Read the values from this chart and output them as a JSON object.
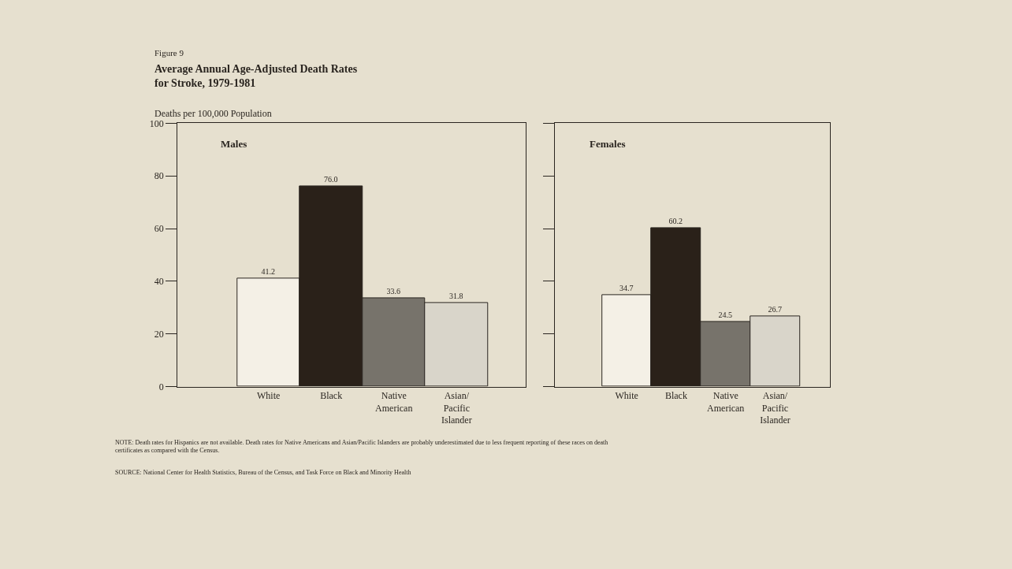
{
  "chart_data": [
    {
      "type": "bar",
      "subtitle": "Figure 9",
      "title": "Average Annual Age-Adjusted Death Rates\nfor Stroke, 1979-1981",
      "ylabel": "Deaths per 100,000 Population",
      "categories": [
        "White",
        "Black",
        "Native\nAmerican",
        "Asian/\nPacific\nIslander"
      ],
      "values": [
        41.2,
        76.0,
        33.6,
        31.8
      ],
      "colors": [
        "#f4f0e6",
        "#2a2119",
        "#77736b",
        "#d9d5ca"
      ],
      "ylim": [
        0,
        100
      ],
      "yticks": [
        0,
        20,
        40,
        60,
        80,
        100
      ],
      "value_labels": [
        "41.2",
        "76.0",
        "33.6",
        "31.8"
      ],
      "grid": false,
      "annotations": [
        "Males",
        "NOTE: Death rates for Hispanics are not available. Death rates for Native Americans and Asian/Pacific Islanders are probably underestimated due to less frequent reporting of these races on death certificates as compared with the Census.",
        "SOURCE: National Center for Health Statistics, Bureau of the Census, and Task Force on Black and Minority Health"
      ]
    },
    {
      "type": "bar",
      "categories": [
        "White",
        "Black",
        "Native\nAmerican",
        "Asian/\nPacific\nIslander"
      ],
      "values": [
        34.7,
        60.2,
        24.5,
        26.7
      ],
      "colors": [
        "#f4f0e6",
        "#2a2119",
        "#77736b",
        "#d9d5ca"
      ],
      "ylim": [
        0,
        100
      ],
      "yticks": [
        0,
        20,
        40,
        60,
        80,
        100
      ],
      "tick_labels": "x",
      "data_labels": true,
      "grid": false,
      "annotations": [
        "Females"
      ]
    }
  ]
}
